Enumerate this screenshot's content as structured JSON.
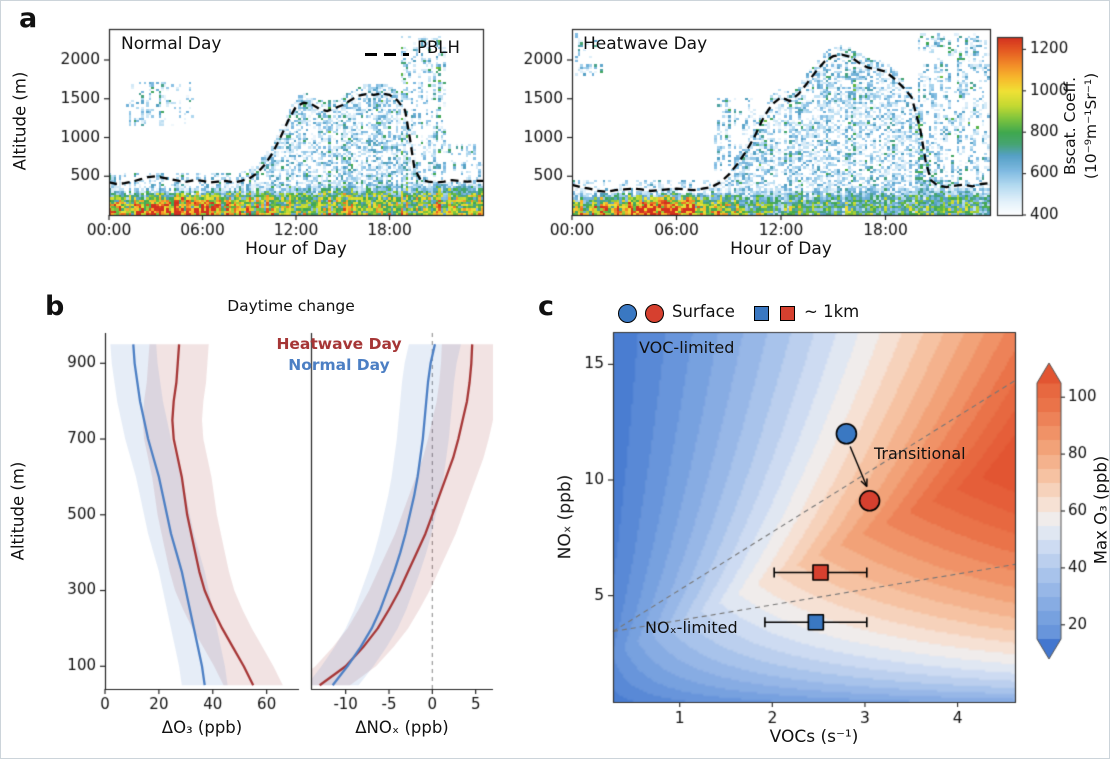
{
  "labels": {
    "panel_a": "a",
    "panel_b": "b",
    "panel_c": "c"
  },
  "chart_data": [
    {
      "id": "heat-normal",
      "type": "heatmap",
      "title": "Normal Day",
      "xlabel": "Hour of Day",
      "ylabel": "Altitude (m)",
      "legend_label": "PBLH",
      "xlim": [
        0,
        24
      ],
      "x_ticks": [
        0,
        6,
        12,
        18
      ],
      "x_tick_labels": [
        "00:00",
        "06:00",
        "12:00",
        "18:00"
      ],
      "ylim": [
        0,
        2400
      ],
      "y_ticks": [
        500,
        1000,
        1500,
        2000
      ],
      "colormap": [
        [
          400,
          "#ffffff"
        ],
        [
          470,
          "#e1f0fa"
        ],
        [
          545,
          "#b3daf0"
        ],
        [
          620,
          "#7cb8e0"
        ],
        [
          690,
          "#55a0c4"
        ],
        [
          745,
          "#46a472"
        ],
        [
          800,
          "#3fa84f"
        ],
        [
          865,
          "#7cc43e"
        ],
        [
          930,
          "#c4d932"
        ],
        [
          1000,
          "#f0e135"
        ],
        [
          1065,
          "#f7b82c"
        ],
        [
          1130,
          "#f28a28"
        ],
        [
          1195,
          "#e55b22"
        ],
        [
          1260,
          "#d3301f"
        ]
      ],
      "colorbar": {
        "title_line1": "Bscat. Coeff.",
        "title_line2": "(10⁻⁹m⁻¹Sr⁻¹)",
        "label": "Bscat. Coeff. (10⁻⁹m⁻¹Sr⁻¹)",
        "ticks": [
          400,
          600,
          800,
          1000,
          1200
        ],
        "range": [
          400,
          1260
        ]
      },
      "pblh": {
        "hours": [
          0,
          0.5,
          1,
          1.5,
          2,
          2.5,
          3,
          3.5,
          4,
          4.5,
          5,
          5.5,
          6,
          6.5,
          7,
          7.5,
          8,
          8.5,
          9,
          9.5,
          10,
          10.5,
          11,
          11.5,
          12,
          12.5,
          13,
          13.5,
          14,
          14.5,
          15,
          15.5,
          16,
          16.5,
          17,
          17.5,
          18,
          18.5,
          19,
          19.3,
          19.6,
          20,
          20.5,
          21,
          21.5,
          22,
          22.5,
          23,
          23.5,
          24
        ],
        "meters": [
          420,
          400,
          410,
          430,
          460,
          490,
          500,
          480,
          460,
          440,
          430,
          450,
          440,
          420,
          430,
          440,
          420,
          440,
          470,
          540,
          650,
          800,
          1000,
          1220,
          1400,
          1450,
          1430,
          1370,
          1340,
          1380,
          1420,
          1480,
          1540,
          1560,
          1550,
          1570,
          1550,
          1480,
          1350,
          1000,
          600,
          450,
          430,
          420,
          430,
          450,
          440,
          430,
          440,
          440
        ]
      },
      "proc": {
        "amp_base": 980,
        "amp_early": 170,
        "early_center": 4.0,
        "early_width": 16,
        "amp_day_drop": 90,
        "day_drop_t": 9,
        "layer_top": 300,
        "layer_day_boost": 110,
        "mix": [
          8.5,
          20
        ],
        "windows": [
          [
            18.8,
            21.6,
            350,
            2300,
            0.45,
            220
          ],
          [
            1.2,
            5.6,
            1150,
            1700,
            0.62,
            150
          ],
          [
            21.5,
            24,
            350,
            900,
            0.55,
            160
          ],
          [
            0,
            8.5,
            230,
            540,
            0.3,
            150
          ]
        ]
      }
    },
    {
      "id": "heat-heatwave",
      "type": "heatmap",
      "title": "Heatwave Day",
      "xlabel": "Hour of Day",
      "ylabel": "Altitude (m)",
      "xlim": [
        0,
        24
      ],
      "x_ticks": [
        0,
        6,
        12,
        18
      ],
      "x_tick_labels": [
        "00:00",
        "06:00",
        "12:00",
        "18:00"
      ],
      "ylim": [
        0,
        2400
      ],
      "y_ticks": [
        500,
        1000,
        1500,
        2000
      ],
      "colormap": [
        [
          400,
          "#ffffff"
        ],
        [
          470,
          "#e1f0fa"
        ],
        [
          545,
          "#b3daf0"
        ],
        [
          620,
          "#7cb8e0"
        ],
        [
          690,
          "#55a0c4"
        ],
        [
          745,
          "#46a472"
        ],
        [
          800,
          "#3fa84f"
        ],
        [
          865,
          "#7cc43e"
        ],
        [
          930,
          "#c4d932"
        ],
        [
          1000,
          "#f0e135"
        ],
        [
          1065,
          "#f7b82c"
        ],
        [
          1130,
          "#f28a28"
        ],
        [
          1195,
          "#e55b22"
        ],
        [
          1260,
          "#d3301f"
        ]
      ],
      "pblh": {
        "hours": [
          0,
          0.5,
          1,
          1.5,
          2,
          2.5,
          3,
          3.5,
          4,
          4.5,
          5,
          5.5,
          6,
          6.5,
          7,
          7.5,
          8,
          8.5,
          9,
          9.5,
          10,
          10.5,
          11,
          11.5,
          12,
          12.5,
          13,
          13.5,
          14,
          14.5,
          15,
          15.5,
          16,
          16.5,
          17,
          17.5,
          18,
          18.5,
          19,
          19.5,
          20,
          20.3,
          20.6,
          21,
          21.5,
          22,
          22.5,
          23,
          23.5,
          24
        ],
        "meters": [
          390,
          360,
          340,
          310,
          300,
          320,
          330,
          340,
          330,
          310,
          320,
          330,
          340,
          330,
          320,
          340,
          360,
          420,
          520,
          660,
          820,
          1020,
          1260,
          1430,
          1520,
          1470,
          1560,
          1700,
          1850,
          1980,
          2050,
          2070,
          2040,
          1960,
          1900,
          1880,
          1850,
          1760,
          1650,
          1520,
          1100,
          700,
          450,
          380,
          360,
          380,
          390,
          370,
          400,
          410
        ]
      },
      "proc": {
        "amp_base": 920,
        "amp_early": 360,
        "early_center": 4.6,
        "early_width": 10,
        "amp_day_drop": 150,
        "day_drop_t": 9.5,
        "layer_top": 260,
        "layer_day_boost": 120,
        "mix": [
          9,
          20.3
        ],
        "windows": [
          [
            19.8,
            24,
            300,
            2350,
            0.4,
            220
          ],
          [
            0,
            1.8,
            1800,
            2350,
            0.5,
            180
          ],
          [
            8.2,
            10.5,
            300,
            1500,
            0.5,
            200
          ],
          [
            0,
            8.5,
            200,
            460,
            0.35,
            140
          ]
        ]
      }
    },
    {
      "id": "profiles",
      "type": "line",
      "title": "Daytime change",
      "ylabel": "Altitude (m)",
      "ylim": [
        40,
        980
      ],
      "y_ticks": [
        100,
        300,
        500,
        700,
        900
      ],
      "altitudes": [
        50,
        100,
        150,
        200,
        250,
        300,
        350,
        400,
        450,
        500,
        550,
        600,
        650,
        700,
        750,
        800,
        850,
        900,
        950
      ],
      "subplots": [
        {
          "xlabel": "ΔO₃ (ppb)",
          "xlim": [
            0,
            72
          ],
          "x_ticks": [
            0,
            20,
            40,
            60
          ],
          "series": [
            {
              "name": "Heatwave Day",
              "color": "#a63636",
              "band_color": "rgba(166,54,54,0.14)",
              "band": 11,
              "values": [
                55,
                51.5,
                47.5,
                43.5,
                40,
                37,
                35,
                33.5,
                32,
                30.5,
                29.5,
                28.5,
                27,
                25.5,
                25,
                25.5,
                26.5,
                27,
                27.5
              ]
            },
            {
              "name": "Normal Day",
              "color": "#4c7fc4",
              "band_color": "rgba(76,127,196,0.14)",
              "band": 8.5,
              "values": [
                37,
                36,
                34.5,
                33,
                31.5,
                30,
                28.5,
                26.5,
                24.5,
                23,
                21.5,
                20,
                18,
                16,
                14.5,
                13,
                12,
                11,
                10.5
              ]
            }
          ]
        },
        {
          "xlabel": "ΔNOₓ (ppb)",
          "xlim": [
            -14,
            7
          ],
          "x_ticks": [
            -10,
            -5,
            0,
            5
          ],
          "zero_line": true,
          "series": [
            {
              "name": "Heatwave Day",
              "color": "#a63636",
              "band_color": "rgba(166,54,54,0.14)",
              "band": 3.5,
              "values": [
                -13,
                -10,
                -8,
                -6.3,
                -5,
                -3.8,
                -2.8,
                -1.8,
                -0.8,
                0,
                0.8,
                1.6,
                2.4,
                3,
                3.5,
                4,
                4.3,
                4.5,
                4.6
              ]
            },
            {
              "name": "Normal Day",
              "color": "#4c7fc4",
              "band_color": "rgba(76,127,196,0.14)",
              "band": 3,
              "values": [
                -11.5,
                -9.8,
                -8.3,
                -7,
                -6,
                -5.2,
                -4.4,
                -3.7,
                -3.1,
                -2.6,
                -2.1,
                -1.7,
                -1.4,
                -1.1,
                -0.9,
                -0.7,
                -0.5,
                -0.2,
                0.3
              ]
            }
          ]
        }
      ]
    },
    {
      "id": "ozone-isopleth",
      "type": "contour",
      "xlabel": "VOCs (s⁻¹)",
      "ylabel": "NOₓ (ppb)",
      "xlim": [
        0.28,
        4.62
      ],
      "x_ticks": [
        1,
        2,
        3,
        4
      ],
      "ylim": [
        0.4,
        16.4
      ],
      "y_ticks": [
        5,
        10,
        15
      ],
      "colormap": [
        [
          5,
          "#4377cf"
        ],
        [
          20,
          "#6f9bdd"
        ],
        [
          35,
          "#9fbde9"
        ],
        [
          48,
          "#cfdcf2"
        ],
        [
          56,
          "#eeeff2"
        ],
        [
          62,
          "#f6e3d7"
        ],
        [
          72,
          "#f6c4a4"
        ],
        [
          85,
          "#f19a6e"
        ],
        [
          98,
          "#ea7147"
        ],
        [
          112,
          "#e25532"
        ]
      ],
      "colorbar": {
        "label": "Max O₃ (ppb)",
        "ticks": [
          20,
          40,
          60,
          80,
          100
        ],
        "range": [
          15,
          105
        ],
        "extend": "both"
      },
      "model": {
        "vmax": 4.7,
        "s_pow": 0.72,
        "ridge0": 2.0,
        "ridge_slope": 1.9,
        "lo_pow": 0.45,
        "hi_pow": 0.55,
        "scale": 118,
        "level": 5
      },
      "regions": [
        {
          "label": "VOC-limited",
          "x": 1.0,
          "y": 15.4
        },
        {
          "label": "Transitional",
          "x": 3.62,
          "y": 11.0
        },
        {
          "label": "NOₓ-limited",
          "x": 1.15,
          "y": 3.3
        }
      ],
      "regime_lines": [
        {
          "from": [
            0.28,
            3.45
          ],
          "to": [
            4.62,
            14.3
          ]
        },
        {
          "from": [
            0.28,
            3.45
          ],
          "to": [
            4.62,
            6.35
          ]
        }
      ],
      "legend": [
        {
          "label": "Surface",
          "marker": "circle"
        },
        {
          "label": "~ 1km",
          "marker": "square"
        }
      ],
      "points": [
        {
          "name": "surface-normal",
          "marker": "circle",
          "color": "#3a78c2",
          "x": 2.8,
          "y": 12.0
        },
        {
          "name": "surface-heatwave",
          "marker": "circle",
          "color": "#d6402f",
          "x": 3.05,
          "y": 9.1
        },
        {
          "name": "1km-heatwave",
          "marker": "square",
          "color": "#d6402f",
          "x": 2.52,
          "y": 6.0,
          "xerr": 0.5
        },
        {
          "name": "1km-normal",
          "marker": "square",
          "color": "#3a78c2",
          "x": 2.47,
          "y": 3.85,
          "xerr": 0.55
        }
      ],
      "arrow": {
        "from": [
          2.84,
          11.45
        ],
        "to": [
          3.02,
          9.72
        ]
      }
    }
  ]
}
